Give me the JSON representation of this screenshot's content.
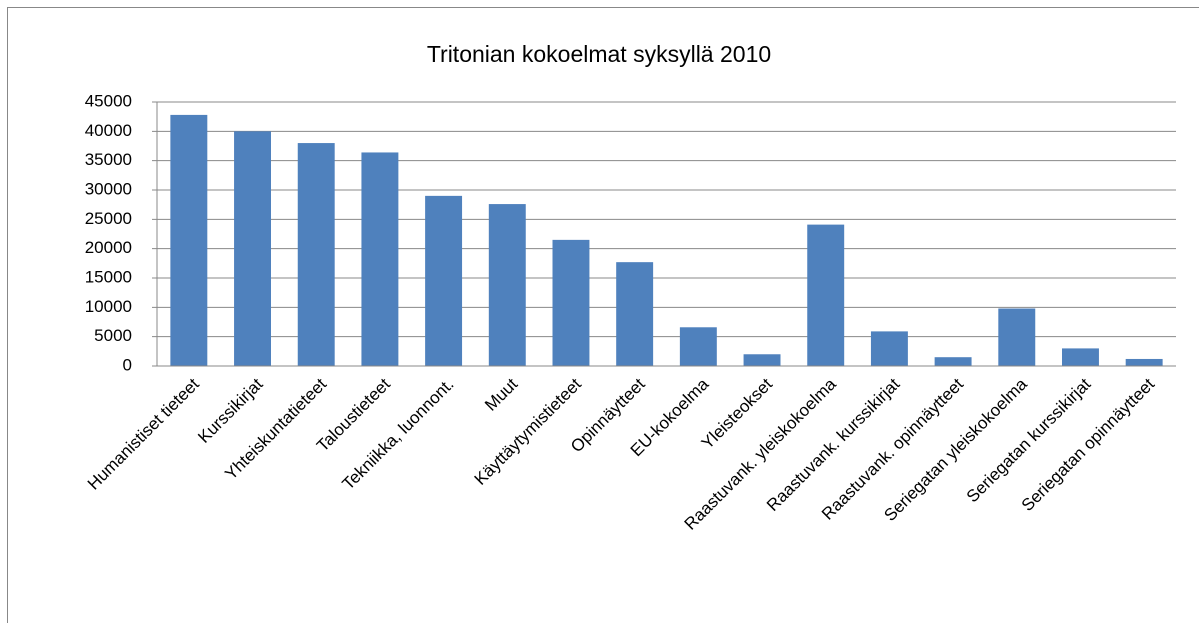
{
  "chart_data": {
    "type": "bar",
    "title": "Tritonian kokoelmat syksyllä 2010",
    "categories": [
      "Humanistiset tieteet",
      "Kurssikirjat",
      "Yhteiskuntatieteet",
      "Taloustieteet",
      "Tekniikka, luonnont.",
      "Muut",
      "Käyttäytymistieteet",
      "Opinnäytteet",
      "EU-kokoelma",
      "Yleisteokset",
      "Raastuvank. yleiskokoelma",
      "Raastuvank. kurssikirjat",
      "Raastuvank. opinnäytteet",
      "Seriegatan yleiskokoelma",
      "Seriegatan kurssikirjat",
      "Seriegatan opinnäytteet"
    ],
    "values": [
      42800,
      40000,
      38000,
      36400,
      29000,
      27600,
      21500,
      17700,
      6600,
      2000,
      24100,
      5900,
      1500,
      9800,
      3000,
      1200
    ],
    "color": "#4f81bd",
    "ylim": [
      0,
      45000
    ],
    "yticks": [
      0,
      5000,
      10000,
      15000,
      20000,
      25000,
      30000,
      35000,
      40000,
      45000
    ],
    "grid": true
  }
}
